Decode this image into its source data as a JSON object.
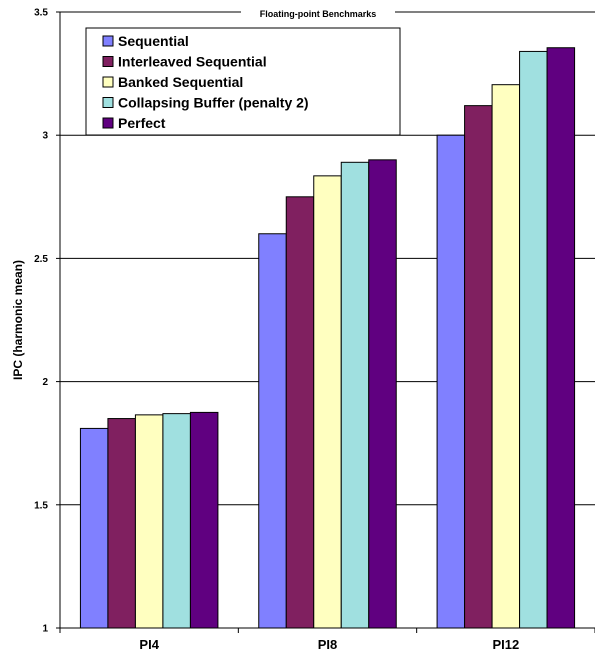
{
  "chart_data": {
    "type": "bar",
    "title": "Floating-point Benchmarks",
    "xlabel": "",
    "ylabel": "IPC (harmonic mean)",
    "ylim": [
      1,
      3.5
    ],
    "yticks": [
      "1",
      "1.5",
      "2",
      "2.5",
      "3",
      "3.5"
    ],
    "grid": true,
    "legend_position": "top-left",
    "categories": [
      "PI4",
      "PI8",
      "PI12"
    ],
    "series": [
      {
        "name": "Sequential",
        "color": "#8080FF",
        "values": [
          1.81,
          2.6,
          3.0
        ]
      },
      {
        "name": "Interleaved Sequential",
        "color": "#802060",
        "values": [
          1.85,
          2.75,
          3.12
        ]
      },
      {
        "name": "Banked Sequential",
        "color": "#FFFFC0",
        "values": [
          1.865,
          2.835,
          3.205
        ]
      },
      {
        "name": "Collapsing Buffer (penalty 2)",
        "color": "#A0E0E0",
        "values": [
          1.87,
          2.89,
          3.34
        ]
      },
      {
        "name": "Perfect",
        "color": "#600080",
        "values": [
          1.875,
          2.9,
          3.355
        ]
      }
    ]
  }
}
